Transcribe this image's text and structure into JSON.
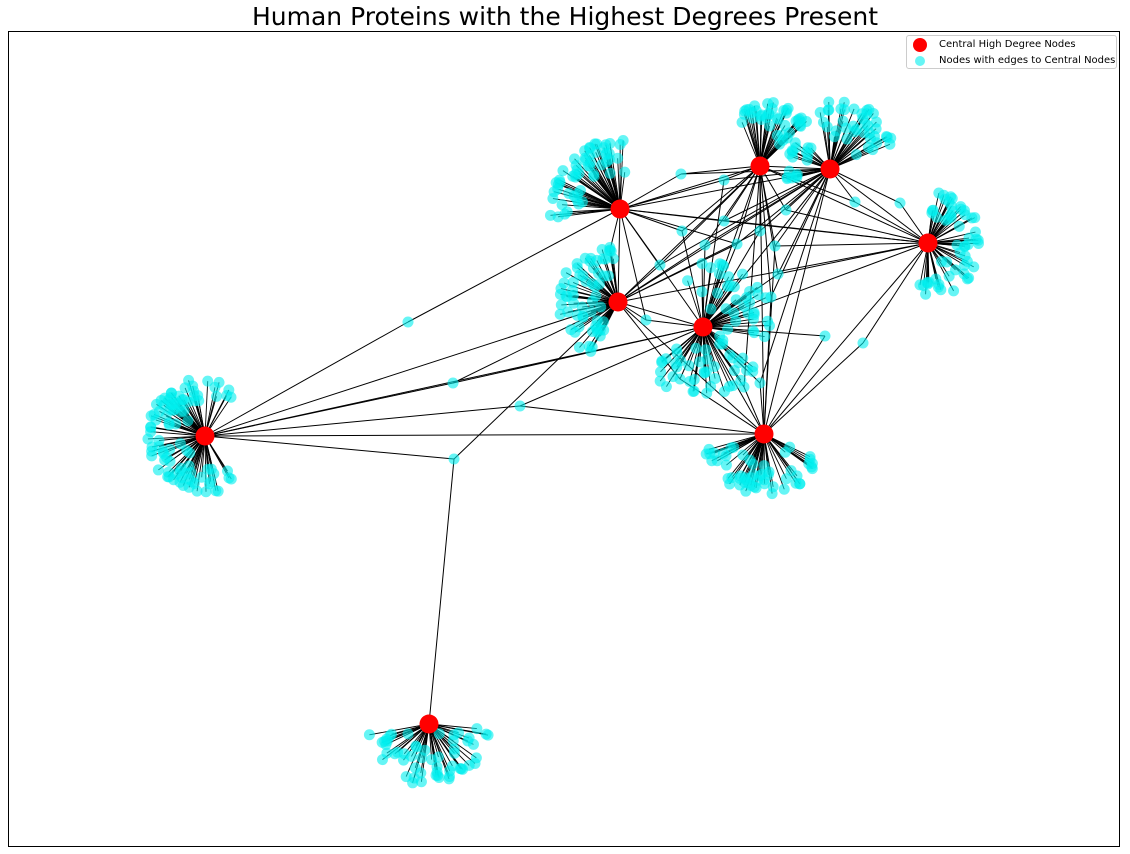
{
  "title": "Human Proteins with the Highest Degrees Present",
  "colors": {
    "central": "#ff0000",
    "peripheral": "#00eeee",
    "edge": "#000000"
  },
  "legend": {
    "placement": "top-right",
    "central_label": "Central High Degree Nodes",
    "peripheral_label": "Nodes with edges to Central Nodes"
  }
}
